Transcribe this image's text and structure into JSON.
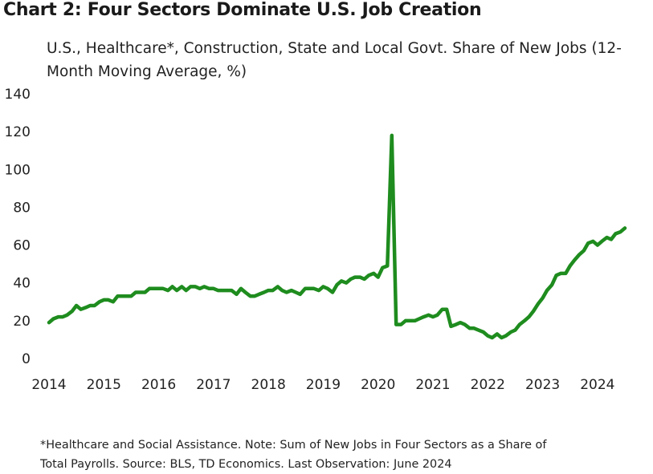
{
  "chart_data": {
    "type": "line",
    "title": "Chart 2: Four Sectors Dominate U.S. Job Creation",
    "subtitle": "U.S., Healthcare*, Construction, State and Local Govt. Share of New Jobs (12-Month Moving Average, %)",
    "xlabel": "",
    "ylabel": "",
    "ylim": [
      0,
      140
    ],
    "yticks": [
      "0",
      "20",
      "40",
      "60",
      "80",
      "100",
      "120",
      "140"
    ],
    "xticks": [
      "2014",
      "2015",
      "2016",
      "2017",
      "2018",
      "2019",
      "2020",
      "2021",
      "2022",
      "2023",
      "2024"
    ],
    "xlim": [
      2014.0,
      2024.5
    ],
    "grid": false,
    "legend": "none",
    "line_color": "#1e8c1e",
    "series": [
      {
        "name": "Share of New Jobs",
        "points": [
          [
            2014.0,
            19
          ],
          [
            2014.08,
            21
          ],
          [
            2014.17,
            22
          ],
          [
            2014.25,
            22
          ],
          [
            2014.33,
            23
          ],
          [
            2014.42,
            25
          ],
          [
            2014.5,
            28
          ],
          [
            2014.58,
            26
          ],
          [
            2014.67,
            27
          ],
          [
            2014.75,
            28
          ],
          [
            2014.83,
            28
          ],
          [
            2014.92,
            30
          ],
          [
            2015.0,
            31
          ],
          [
            2015.08,
            31
          ],
          [
            2015.17,
            30
          ],
          [
            2015.25,
            33
          ],
          [
            2015.33,
            33
          ],
          [
            2015.42,
            33
          ],
          [
            2015.5,
            33
          ],
          [
            2015.58,
            35
          ],
          [
            2015.67,
            35
          ],
          [
            2015.75,
            35
          ],
          [
            2015.83,
            37
          ],
          [
            2015.92,
            37
          ],
          [
            2016.0,
            37
          ],
          [
            2016.08,
            37
          ],
          [
            2016.17,
            36
          ],
          [
            2016.25,
            38
          ],
          [
            2016.33,
            36
          ],
          [
            2016.42,
            38
          ],
          [
            2016.5,
            36
          ],
          [
            2016.58,
            38
          ],
          [
            2016.67,
            38
          ],
          [
            2016.75,
            37
          ],
          [
            2016.83,
            38
          ],
          [
            2016.92,
            37
          ],
          [
            2017.0,
            37
          ],
          [
            2017.08,
            36
          ],
          [
            2017.17,
            36
          ],
          [
            2017.25,
            36
          ],
          [
            2017.33,
            36
          ],
          [
            2017.42,
            34
          ],
          [
            2017.5,
            37
          ],
          [
            2017.58,
            35
          ],
          [
            2017.67,
            33
          ],
          [
            2017.75,
            33
          ],
          [
            2017.83,
            34
          ],
          [
            2017.92,
            35
          ],
          [
            2018.0,
            36
          ],
          [
            2018.08,
            36
          ],
          [
            2018.17,
            38
          ],
          [
            2018.25,
            36
          ],
          [
            2018.33,
            35
          ],
          [
            2018.42,
            36
          ],
          [
            2018.5,
            35
          ],
          [
            2018.58,
            34
          ],
          [
            2018.67,
            37
          ],
          [
            2018.75,
            37
          ],
          [
            2018.83,
            37
          ],
          [
            2018.92,
            36
          ],
          [
            2019.0,
            38
          ],
          [
            2019.08,
            37
          ],
          [
            2019.17,
            35
          ],
          [
            2019.25,
            39
          ],
          [
            2019.33,
            41
          ],
          [
            2019.42,
            40
          ],
          [
            2019.5,
            42
          ],
          [
            2019.58,
            43
          ],
          [
            2019.67,
            43
          ],
          [
            2019.75,
            42
          ],
          [
            2019.83,
            44
          ],
          [
            2019.92,
            45
          ],
          [
            2020.0,
            43
          ],
          [
            2020.08,
            48
          ],
          [
            2020.17,
            49
          ],
          [
            2020.25,
            118
          ],
          [
            2020.33,
            18
          ],
          [
            2020.42,
            18
          ],
          [
            2020.5,
            20
          ],
          [
            2020.58,
            20
          ],
          [
            2020.67,
            20
          ],
          [
            2020.75,
            21
          ],
          [
            2020.83,
            22
          ],
          [
            2020.92,
            23
          ],
          [
            2021.0,
            22
          ],
          [
            2021.08,
            23
          ],
          [
            2021.17,
            26
          ],
          [
            2021.25,
            26
          ],
          [
            2021.33,
            17
          ],
          [
            2021.42,
            18
          ],
          [
            2021.5,
            19
          ],
          [
            2021.58,
            18
          ],
          [
            2021.67,
            16
          ],
          [
            2021.75,
            16
          ],
          [
            2021.83,
            15
          ],
          [
            2021.92,
            14
          ],
          [
            2022.0,
            12
          ],
          [
            2022.08,
            11
          ],
          [
            2022.17,
            13
          ],
          [
            2022.25,
            11
          ],
          [
            2022.33,
            12
          ],
          [
            2022.42,
            14
          ],
          [
            2022.5,
            15
          ],
          [
            2022.58,
            18
          ],
          [
            2022.67,
            20
          ],
          [
            2022.75,
            22
          ],
          [
            2022.83,
            25
          ],
          [
            2022.92,
            29
          ],
          [
            2023.0,
            32
          ],
          [
            2023.08,
            36
          ],
          [
            2023.17,
            39
          ],
          [
            2023.25,
            44
          ],
          [
            2023.33,
            45
          ],
          [
            2023.42,
            45
          ],
          [
            2023.5,
            49
          ],
          [
            2023.58,
            52
          ],
          [
            2023.67,
            55
          ],
          [
            2023.75,
            57
          ],
          [
            2023.83,
            61
          ],
          [
            2023.92,
            62
          ],
          [
            2024.0,
            60
          ],
          [
            2024.08,
            62
          ],
          [
            2024.17,
            64
          ],
          [
            2024.25,
            63
          ],
          [
            2024.33,
            66
          ],
          [
            2024.42,
            67
          ],
          [
            2024.5,
            69
          ]
        ]
      }
    ],
    "footnote_line1": "*Healthcare and Social Assistance. Note: Sum of New Jobs in Four Sectors as a Share of",
    "footnote_line2": "Total Payrolls. Source: BLS, TD Economics. Last Observation: June 2024"
  }
}
